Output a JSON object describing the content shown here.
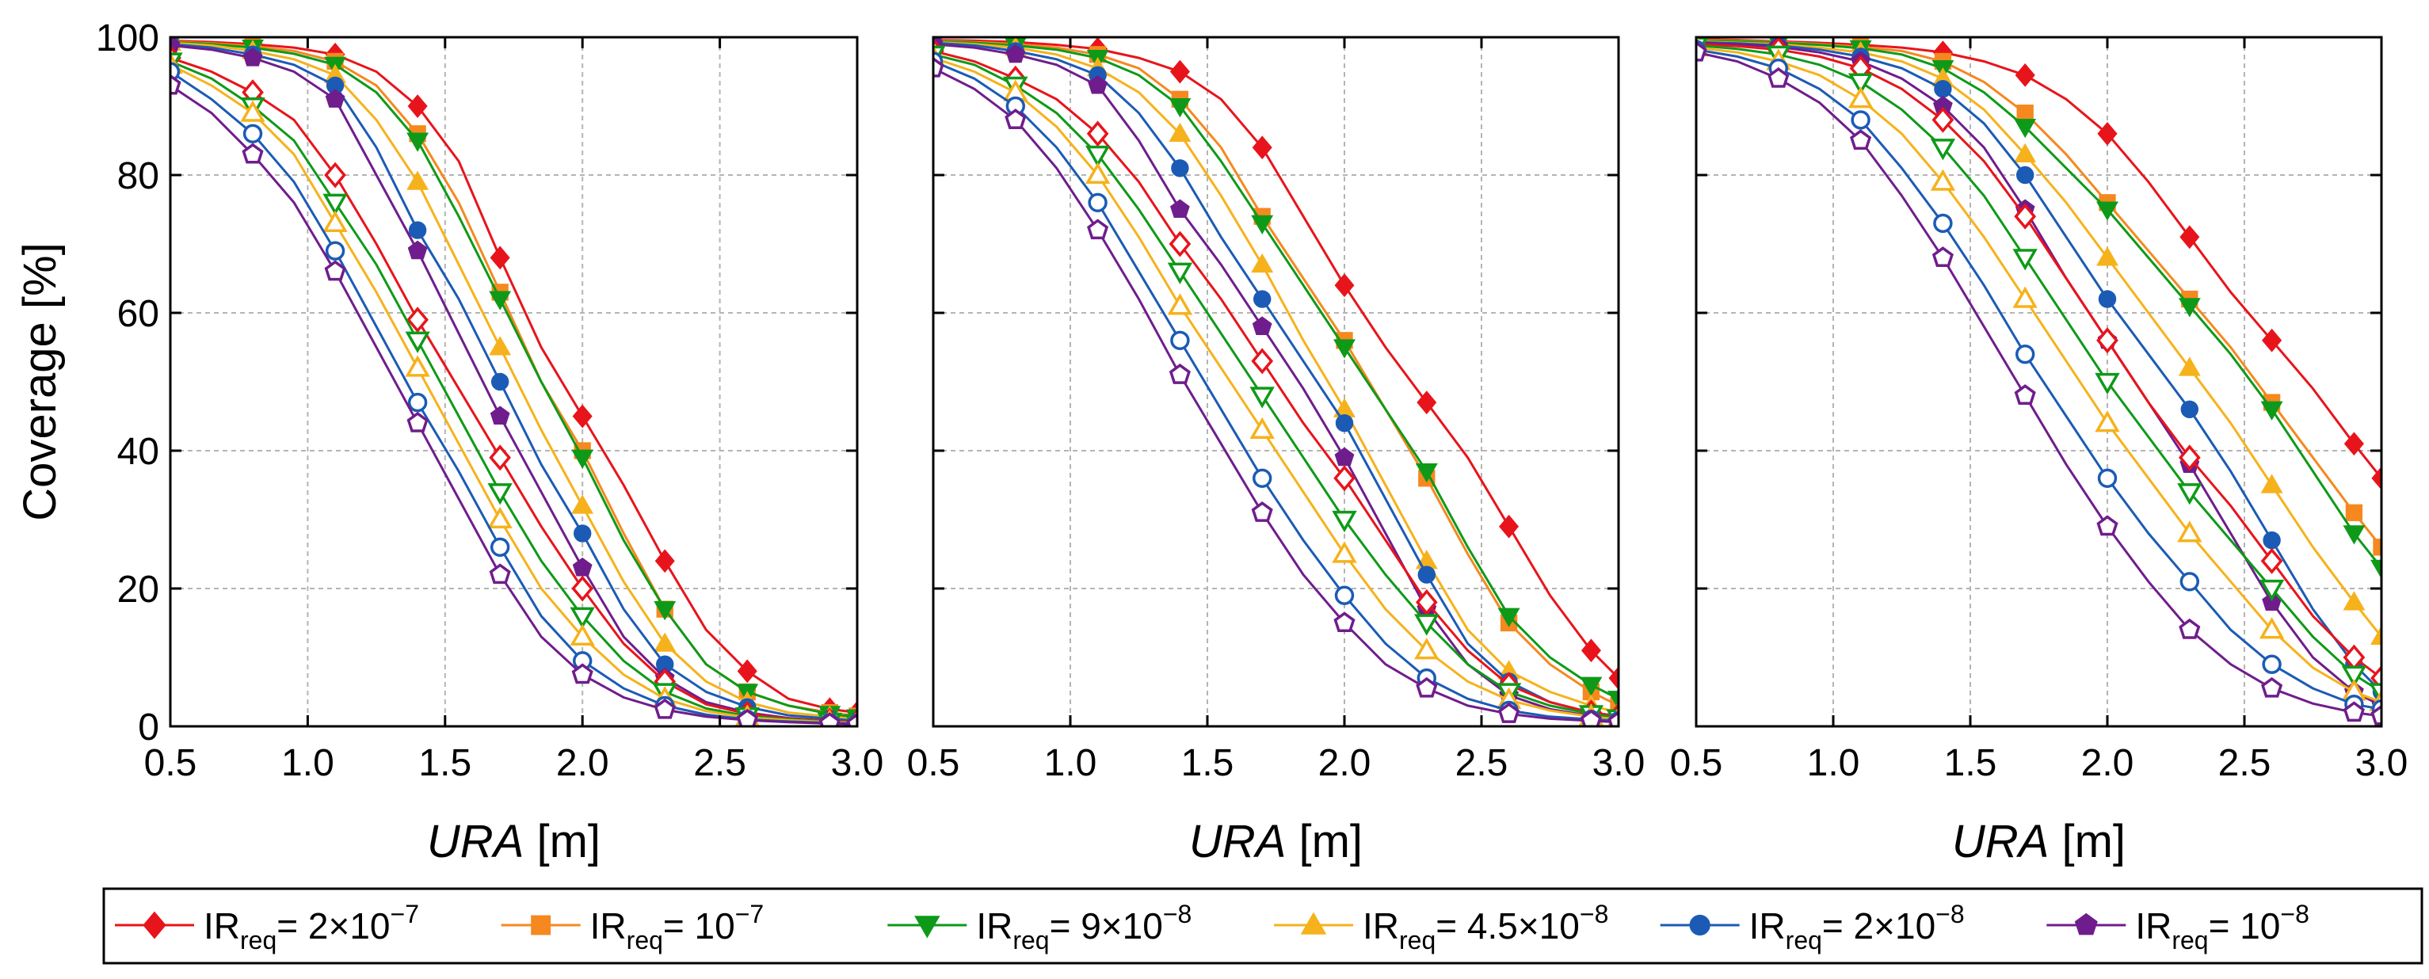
{
  "chart_data": {
    "type": "line",
    "ylabel": "Coverage [%]",
    "xlabel_main": "URA",
    "xlabel_unit": "[m]",
    "xlim": [
      0.5,
      3.0
    ],
    "ylim": [
      0,
      100
    ],
    "xticks": [
      "0.5",
      "1.0",
      "1.5",
      "2.0",
      "2.5",
      "3.0"
    ],
    "yticks": [
      "0",
      "20",
      "40",
      "60",
      "80",
      "100"
    ],
    "grid": true,
    "legend_position": "bottom",
    "x": [
      0.5,
      0.65,
      0.8,
      0.95,
      1.1,
      1.25,
      1.4,
      1.55,
      1.7,
      1.85,
      2.0,
      2.15,
      2.3,
      2.45,
      2.6,
      2.75,
      2.9,
      3.0
    ],
    "legend": [
      {
        "name": "IR",
        "sub": "req",
        "value": "= 2×10",
        "exp": "−7",
        "color": "#e8141b",
        "marker": "diamond"
      },
      {
        "name": "IR",
        "sub": "req",
        "value": "= 10",
        "exp": "−7",
        "color": "#f5881f",
        "marker": "square"
      },
      {
        "name": "IR",
        "sub": "req",
        "value": "= 9×10",
        "exp": "−8",
        "color": "#0e9a18",
        "marker": "triangle-down"
      },
      {
        "name": "IR",
        "sub": "req",
        "value": "= 4.5×10",
        "exp": "−8",
        "color": "#f6b21c",
        "marker": "triangle-up"
      },
      {
        "name": "IR",
        "sub": "req",
        "value": "= 2×10",
        "exp": "−8",
        "color": "#1b5bb5",
        "marker": "circle"
      },
      {
        "name": "IR",
        "sub": "req",
        "value": "= 10",
        "exp": "−8",
        "color": "#6f1d8c",
        "marker": "pentagon"
      }
    ],
    "panels": [
      {
        "name": "left",
        "series": [
          {
            "color": "#e8141b",
            "marker": "diamond",
            "filled": true,
            "values": [
              99.5,
              99.3,
              99,
              98.5,
              97.5,
              95,
              90,
              82,
              68,
              55,
              45,
              35,
              24,
              14,
              8,
              4,
              2.5,
              2
            ]
          },
          {
            "color": "#f5881f",
            "marker": "square",
            "filled": true,
            "values": [
              99.4,
              99.1,
              98.7,
              98,
              96.5,
              93,
              86,
              76,
              63,
              50,
              40,
              28,
              17,
              9,
              5,
              3,
              2,
              1.5
            ]
          },
          {
            "color": "#0e9a18",
            "marker": "triangle-down",
            "filled": true,
            "values": [
              99.3,
              99,
              98.5,
              97.6,
              96,
              92,
              85,
              74,
              62,
              50,
              39,
              27,
              17,
              9,
              5,
              3,
              1.8,
              1.3
            ]
          },
          {
            "color": "#f6b21c",
            "marker": "triangle-up",
            "filled": true,
            "values": [
              99.2,
              98.8,
              98,
              96.8,
              94.5,
              88,
              79,
              67,
              55,
              43,
              32,
              21,
              12,
              6.5,
              3.5,
              2,
              1.4,
              1
            ]
          },
          {
            "color": "#1b5bb5",
            "marker": "circle",
            "filled": true,
            "values": [
              99,
              98.5,
              97.5,
              96,
              93,
              84,
              72,
              62,
              50,
              38,
              28,
              17,
              9,
              5,
              2.8,
              1.6,
              1.1,
              0.8
            ]
          },
          {
            "color": "#6f1d8c",
            "marker": "pentagon",
            "filled": true,
            "values": [
              98.8,
              98.2,
              97,
              95,
              91,
              80,
              69,
              57,
              45,
              34,
              23,
              13,
              7,
              3.5,
              2,
              1.2,
              0.8,
              0.6
            ]
          },
          {
            "color": "#e8141b",
            "marker": "diamond",
            "filled": false,
            "values": [
              97,
              95,
              92,
              88,
              80,
              70,
              59,
              49,
              39,
              29,
              20,
              12,
              6.5,
              3.2,
              1.8,
              1.1,
              0.8,
              0.6
            ]
          },
          {
            "color": "#0e9a18",
            "marker": "triangle-down",
            "filled": false,
            "values": [
              96.5,
              94,
              90,
              85,
              76,
              67,
              56,
              45,
              34,
              24,
              16,
              9.5,
              5,
              2.6,
              1.5,
              1,
              0.7,
              0.5
            ]
          },
          {
            "color": "#f6b21c",
            "marker": "triangle-up",
            "filled": false,
            "values": [
              96,
              93,
              89,
              83,
              73,
              63,
              52,
              41,
              30,
              20,
              13,
              7.5,
              4,
              2.2,
              1.3,
              0.9,
              0.6,
              0.5
            ]
          },
          {
            "color": "#1b5bb5",
            "marker": "circle",
            "filled": false,
            "values": [
              95,
              91,
              86,
              79,
              69,
              58,
              47,
              37,
              26,
              16,
              9.5,
              5.5,
              3,
              1.7,
              1,
              0.7,
              0.5,
              0.4
            ]
          },
          {
            "color": "#6f1d8c",
            "marker": "pentagon",
            "filled": false,
            "values": [
              93,
              89,
              83,
              76,
              66,
              55,
              44,
              33,
              22,
              13,
              7.5,
              4.2,
              2.4,
              1.4,
              0.9,
              0.6,
              0.4,
              0.3
            ]
          }
        ]
      },
      {
        "name": "middle",
        "series": [
          {
            "color": "#e8141b",
            "marker": "diamond",
            "filled": true,
            "values": [
              99.6,
              99.5,
              99.3,
              98.9,
              98.3,
              97,
              95,
              91,
              84,
              74,
              64,
              55,
              47,
              39,
              29,
              19,
              11,
              7
            ]
          },
          {
            "color": "#f5881f",
            "marker": "square",
            "filled": true,
            "values": [
              99.5,
              99.3,
              99,
              98.5,
              97.5,
              95.5,
              91,
              84,
              74,
              65,
              56,
              46,
              36,
              25,
              15,
              9,
              5,
              3
            ]
          },
          {
            "color": "#0e9a18",
            "marker": "triangle-down",
            "filled": true,
            "values": [
              99.4,
              99.2,
              98.8,
              98.2,
              97,
              94.5,
              90,
              82,
              73,
              64,
              55,
              46,
              37,
              26,
              16,
              10,
              6,
              4
            ]
          },
          {
            "color": "#f6b21c",
            "marker": "triangle-up",
            "filled": true,
            "values": [
              99.3,
              99,
              98.5,
              97.5,
              95.5,
              92,
              86,
              77,
              67,
              56,
              46,
              35,
              24,
              14,
              8,
              5,
              3,
              2
            ]
          },
          {
            "color": "#1b5bb5",
            "marker": "circle",
            "filled": true,
            "values": [
              99.2,
              98.8,
              98,
              96.8,
              94.5,
              89,
              81,
              71,
              62,
              53,
              44,
              33,
              22,
              12,
              6.5,
              3.5,
              2,
              1.5
            ]
          },
          {
            "color": "#6f1d8c",
            "marker": "pentagon",
            "filled": true,
            "values": [
              99,
              98.5,
              97.5,
              96,
              93,
              85,
              75,
              67,
              58,
              49,
              39,
              28,
              17,
              9,
              4.5,
              2.5,
              1.5,
              1
            ]
          },
          {
            "color": "#e8141b",
            "marker": "diamond",
            "filled": false,
            "values": [
              98,
              96.5,
              94,
              91,
              86,
              79,
              70,
              62,
              53,
              44,
              36,
              27,
              18,
              11,
              6,
              3.5,
              2,
              1.5
            ]
          },
          {
            "color": "#0e9a18",
            "marker": "triangle-down",
            "filled": false,
            "values": [
              97.5,
              96,
              93,
              89,
              83,
              75,
              66,
              57,
              48,
              39,
              30,
              22,
              15,
              9,
              5,
              3,
              1.8,
              1.2
            ]
          },
          {
            "color": "#f6b21c",
            "marker": "triangle-up",
            "filled": false,
            "values": [
              97,
              95,
              92,
              87,
              80,
              71,
              61,
              52,
              43,
              34,
              25,
              17,
              11,
              6.5,
              3.8,
              2.3,
              1.4,
              1
            ]
          },
          {
            "color": "#1b5bb5",
            "marker": "circle",
            "filled": false,
            "values": [
              96.5,
              94,
              90,
              84,
              76,
              66,
              56,
              46,
              36,
              27,
              19,
              12,
              7,
              4,
              2.3,
              1.4,
              1,
              0.8
            ]
          },
          {
            "color": "#6f1d8c",
            "marker": "pentagon",
            "filled": false,
            "values": [
              95.5,
              92.5,
              88,
              81,
              72,
              62,
              51,
              41,
              31,
              22,
              15,
              9,
              5.5,
              3,
              1.8,
              1.1,
              0.8,
              0.6
            ]
          }
        ]
      },
      {
        "name": "right",
        "series": [
          {
            "color": "#e8141b",
            "marker": "diamond",
            "filled": true,
            "values": [
              99.7,
              99.6,
              99.4,
              99.2,
              98.9,
              98.5,
              97.8,
              96.5,
              94.5,
              91,
              86,
              79,
              71,
              63,
              56,
              49,
              41,
              36
            ]
          },
          {
            "color": "#f5881f",
            "marker": "square",
            "filled": true,
            "values": [
              99.6,
              99.5,
              99.3,
              99,
              98.6,
              98,
              96.5,
              93.5,
              89,
              83,
              76,
              69,
              62,
              55,
              47,
              39,
              31,
              26
            ]
          },
          {
            "color": "#0e9a18",
            "marker": "triangle-down",
            "filled": true,
            "values": [
              99.5,
              99.4,
              99.2,
              98.9,
              98.4,
              97.5,
              95.5,
              92,
              87,
              81,
              75,
              68,
              61,
              54,
              46,
              37,
              28,
              23
            ]
          },
          {
            "color": "#f6b21c",
            "marker": "triangle-up",
            "filled": true,
            "values": [
              99.4,
              99.2,
              99,
              98.5,
              97.8,
              96.5,
              94,
              89.5,
              83,
              76,
              68,
              60,
              52,
              44,
              35,
              26,
              18,
              13
            ]
          },
          {
            "color": "#1b5bb5",
            "marker": "circle",
            "filled": true,
            "values": [
              99.3,
              99.1,
              98.8,
              98.2,
              97.2,
              95.5,
              92.5,
              87.5,
              80,
              71,
              62,
              54,
              46,
              37,
              27,
              17,
              9,
              5
            ]
          },
          {
            "color": "#6f1d8c",
            "marker": "pentagon",
            "filled": true,
            "values": [
              99.2,
              99,
              98.6,
              97.8,
              96.5,
              94,
              90,
              84,
              75,
              65,
              56,
              47,
              38,
              28,
              18,
              10,
              5,
              3
            ]
          },
          {
            "color": "#e8141b",
            "marker": "diamond",
            "filled": false,
            "values": [
              99,
              98.7,
              98.2,
              97.2,
              95.5,
              92.5,
              88,
              82,
              74,
              65,
              56,
              47,
              39,
              32,
              24,
              16,
              10,
              7
            ]
          },
          {
            "color": "#0e9a18",
            "marker": "triangle-down",
            "filled": false,
            "values": [
              98.8,
              98.3,
              97.5,
              96,
              93.5,
              89.5,
              84,
              77,
              68,
              59,
              50,
              42,
              34,
              27,
              20,
              13,
              7.5,
              5
            ]
          },
          {
            "color": "#f6b21c",
            "marker": "triangle-up",
            "filled": false,
            "values": [
              98.5,
              97.8,
              96.5,
              94.5,
              91,
              86,
              79,
              71,
              62,
              53,
              44,
              36,
              28,
              21,
              14,
              8.5,
              5,
              3.5
            ]
          },
          {
            "color": "#1b5bb5",
            "marker": "circle",
            "filled": false,
            "values": [
              98.2,
              97.2,
              95.5,
              92.5,
              88,
              81,
              73,
              64,
              54,
              45,
              36,
              28,
              21,
              14,
              9,
              5.5,
              3.2,
              2.5
            ]
          },
          {
            "color": "#6f1d8c",
            "marker": "pentagon",
            "filled": false,
            "values": [
              97.8,
              96.5,
              94,
              90.5,
              85,
              77,
              68,
              58,
              48,
              38,
              29,
              21,
              14,
              9,
              5.5,
              3.3,
              2,
              1.5
            ]
          }
        ]
      }
    ]
  }
}
